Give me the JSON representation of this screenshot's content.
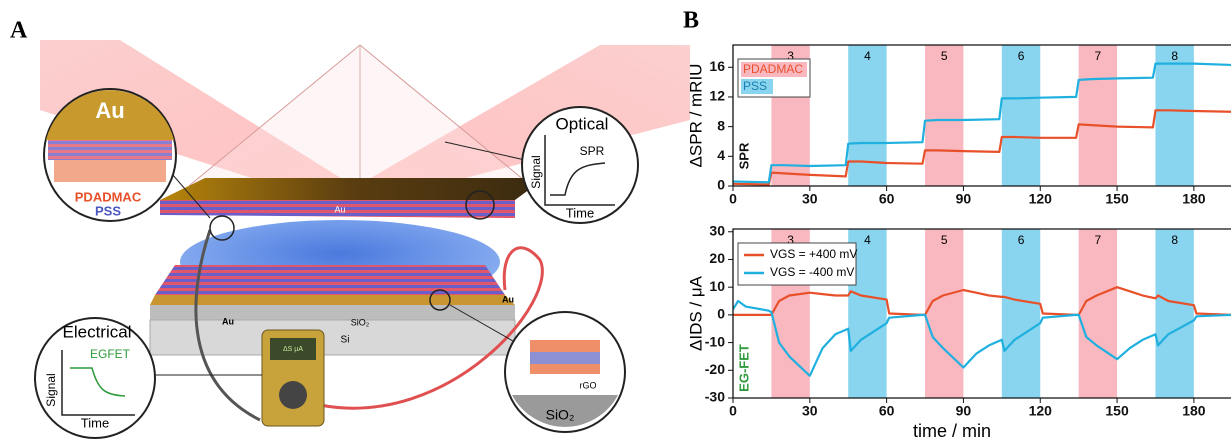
{
  "panel_a": {
    "label": "A",
    "texts": {
      "au_zoom": "Au",
      "pdadmac": "PDADMAC",
      "pss": "PSS",
      "optical": "Optical",
      "optical_signal": "Signal",
      "optical_time": "Time",
      "spr": "SPR",
      "slab_au": "Au",
      "au_left": "Au",
      "au_right": "Au",
      "sio2": "SiO₂",
      "si": "Si",
      "electrical": "Electrical",
      "egfet": "EGFET",
      "electrical_signal": "Signal",
      "electrical_time": "Time",
      "meter": "ΔS µA",
      "rgo": "rGO",
      "sio2_zoom": "SiO₂"
    }
  },
  "panel_b": {
    "label": "B"
  },
  "chart_data": [
    {
      "type": "line",
      "ylabel": "ΔSPR / mRIU",
      "annotation": "SPR",
      "annotation_color": "#111111",
      "x": [
        0,
        14,
        15,
        20,
        30,
        44,
        45,
        50,
        60,
        74,
        75,
        80,
        90,
        104,
        105,
        110,
        120,
        134,
        135,
        140,
        150,
        164,
        165,
        170,
        180,
        195
      ],
      "series": [
        {
          "color": "#e8502a",
          "values": [
            0.3,
            0.2,
            1.8,
            1.7,
            1.5,
            1.3,
            3.3,
            3.3,
            3.1,
            3.0,
            4.8,
            4.8,
            4.7,
            4.6,
            6.6,
            6.6,
            6.5,
            6.5,
            8.3,
            8.2,
            8.0,
            7.9,
            10.2,
            10.2,
            10.1,
            10.0
          ]
        },
        {
          "color": "#1fb0e0",
          "values": [
            0.6,
            0.5,
            2.8,
            2.8,
            2.7,
            2.8,
            5.7,
            5.8,
            5.8,
            5.9,
            8.8,
            8.9,
            8.9,
            9.0,
            11.8,
            11.8,
            11.9,
            12.0,
            14.3,
            14.4,
            14.5,
            14.6,
            16.5,
            16.5,
            16.5,
            16.3
          ]
        }
      ],
      "bands": [
        {
          "x0": 15,
          "x1": 30,
          "label": "3",
          "color": "#f9b8c0"
        },
        {
          "x0": 45,
          "x1": 60,
          "label": "4",
          "color": "#89d4ee"
        },
        {
          "x0": 75,
          "x1": 90,
          "label": "5",
          "color": "#f9b8c0"
        },
        {
          "x0": 105,
          "x1": 120,
          "label": "6",
          "color": "#89d4ee"
        },
        {
          "x0": 135,
          "x1": 150,
          "label": "7",
          "color": "#f9b8c0"
        },
        {
          "x0": 165,
          "x1": 180,
          "label": "8",
          "color": "#89d4ee"
        }
      ],
      "legend": [
        {
          "name": "PDADMAC",
          "color": "#f9b8c0",
          "text_color": "#e8502a"
        },
        {
          "name": "PSS",
          "color": "#89d4ee",
          "text_color": "#1a7fb0"
        }
      ],
      "legend_corner": "top-left",
      "xlim": [
        0,
        194.5
      ],
      "ylim": [
        0,
        19
      ],
      "xticks": [
        0,
        30,
        60,
        90,
        120,
        150,
        180
      ],
      "yticks": [
        0,
        4,
        8,
        12,
        16
      ]
    },
    {
      "type": "line",
      "ylabel": "ΔIDS / μA",
      "xlabel": "time / min",
      "annotation": "EG-FET",
      "annotation_color": "#2e9a3a",
      "x": [
        0,
        2,
        5,
        14,
        15,
        18,
        22,
        30,
        35,
        40,
        45,
        46,
        50,
        60,
        61,
        74,
        75,
        78,
        82,
        90,
        95,
        100,
        105,
        106,
        110,
        120,
        121,
        134,
        135,
        138,
        142,
        150,
        155,
        160,
        165,
        166,
        170,
        180,
        181,
        195
      ],
      "series": [
        {
          "name": "VGS = +400 mV",
          "color": "#e8502a",
          "values": [
            0,
            0,
            0,
            0,
            0,
            5,
            7,
            8,
            7.5,
            7,
            7,
            8.5,
            7,
            5.5,
            0.5,
            0,
            0,
            5,
            7,
            9,
            8,
            7,
            6.5,
            6.5,
            5.5,
            4,
            0.5,
            0,
            0,
            5,
            7,
            10,
            8.5,
            7,
            6,
            7,
            5,
            3.5,
            0.5,
            0
          ]
        },
        {
          "name": "VGS = -400 mV",
          "color": "#1fb0e0",
          "values": [
            2,
            5,
            3,
            1.5,
            1,
            -10,
            -15,
            -22,
            -12,
            -7,
            -5,
            -13,
            -9,
            -3,
            -1,
            0,
            0,
            -8,
            -12,
            -19,
            -14,
            -11,
            -9,
            -13,
            -9,
            -3,
            -1,
            0,
            0,
            -8,
            -11,
            -16,
            -12,
            -9,
            -7,
            -11,
            -7,
            -2,
            -0.5,
            0
          ]
        }
      ],
      "bands": [
        {
          "x0": 15,
          "x1": 30,
          "label": "3",
          "color": "#f9b8c0"
        },
        {
          "x0": 45,
          "x1": 60,
          "label": "4",
          "color": "#89d4ee"
        },
        {
          "x0": 75,
          "x1": 90,
          "label": "5",
          "color": "#f9b8c0"
        },
        {
          "x0": 105,
          "x1": 120,
          "label": "6",
          "color": "#89d4ee"
        },
        {
          "x0": 135,
          "x1": 150,
          "label": "7",
          "color": "#f9b8c0"
        },
        {
          "x0": 165,
          "x1": 180,
          "label": "8",
          "color": "#89d4ee"
        }
      ],
      "legend_corner": "top-left",
      "xlim": [
        0,
        194.5
      ],
      "ylim": [
        -30,
        31
      ],
      "xticks": [
        0,
        30,
        60,
        90,
        120,
        150,
        180
      ],
      "yticks": [
        30,
        20,
        10,
        0,
        -10,
        -20,
        -30
      ]
    }
  ]
}
